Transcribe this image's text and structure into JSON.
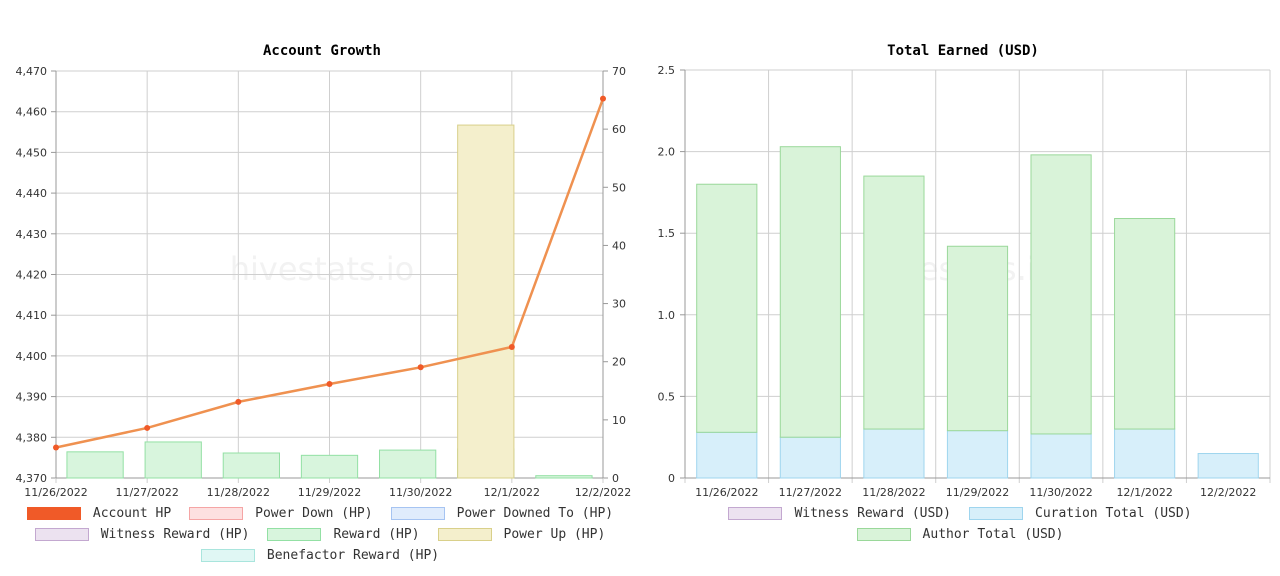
{
  "chart_data": [
    {
      "type": "bar",
      "title": "Account Growth",
      "categories": [
        "11/26/2022",
        "11/27/2022",
        "11/28/2022",
        "11/29/2022",
        "11/30/2022",
        "12/1/2022",
        "12/2/2022"
      ],
      "y_left": {
        "min": 4370,
        "max": 4470,
        "ticks": [
          "4,370",
          "4,380",
          "4,390",
          "4,400",
          "4,410",
          "4,420",
          "4,430",
          "4,440",
          "4,450",
          "4,460",
          "4,470"
        ]
      },
      "y_right": {
        "min": 0,
        "max": 70,
        "ticks": [
          "0",
          "10",
          "20",
          "30",
          "40",
          "50",
          "60",
          "70"
        ]
      },
      "grid": true,
      "watermark": "hivestats.io",
      "line_series": {
        "name": "Account HP",
        "color": "#f05a28",
        "line_color": "#ef9150",
        "values": [
          4377.5,
          4382.3,
          4388.7,
          4393.1,
          4397.2,
          4402.2,
          4463.2
        ]
      },
      "bar_series": [
        {
          "name": "Reward (HP)",
          "fill": "#d8f5dd",
          "stroke": "#93e0a4",
          "values": [
            4.5,
            6.2,
            4.3,
            3.9,
            4.8,
            5.0,
            0.4
          ]
        },
        {
          "name": "Power Up (HP)",
          "fill": "#f4efcc",
          "stroke": "#d9d08a",
          "values": [
            0,
            0,
            0,
            0,
            0,
            60.7,
            0
          ]
        }
      ],
      "legend": [
        [
          {
            "label": "Account HP",
            "fill": "#f05a28",
            "stroke": "#f05a28"
          },
          {
            "label": "Power Down (HP)",
            "fill": "#fde0e0",
            "stroke": "#f5a5a5"
          },
          {
            "label": "Power Downed To (HP)",
            "fill": "#e0ecfc",
            "stroke": "#a6c4f2"
          }
        ],
        [
          {
            "label": "Witness Reward (HP)",
            "fill": "#ece2f0",
            "stroke": "#c3a8d0"
          },
          {
            "label": "Reward (HP)",
            "fill": "#d8f5dd",
            "stroke": "#93e0a4"
          },
          {
            "label": "Power Up (HP)",
            "fill": "#f4efcc",
            "stroke": "#d9d08a"
          }
        ],
        [
          {
            "label": "Benefactor Reward (HP)",
            "fill": "#e0f7f4",
            "stroke": "#a9e5dd"
          }
        ]
      ]
    },
    {
      "type": "bar",
      "stacked": true,
      "title": "Total Earned (USD)",
      "categories": [
        "11/26/2022",
        "11/27/2022",
        "11/28/2022",
        "11/29/2022",
        "11/30/2022",
        "12/1/2022",
        "12/2/2022"
      ],
      "y": {
        "min": 0,
        "max": 2.5,
        "ticks": [
          "0",
          "0.5",
          "1.0",
          "1.5",
          "2.0",
          "2.5"
        ]
      },
      "grid": true,
      "watermark": "hivestats.io",
      "series": [
        {
          "name": "Curation Total (USD)",
          "fill": "#d7effa",
          "stroke": "#9fd5ee",
          "values": [
            0.28,
            0.25,
            0.3,
            0.29,
            0.27,
            0.3,
            0.15
          ]
        },
        {
          "name": "Author Total (USD)",
          "fill": "#d9f3d9",
          "stroke": "#9ad89a",
          "values": [
            1.52,
            1.78,
            1.55,
            1.13,
            1.71,
            1.29,
            0.0
          ]
        }
      ],
      "legend": [
        [
          {
            "label": "Witness Reward (USD)",
            "fill": "#ece2f0",
            "stroke": "#c3a8d0"
          },
          {
            "label": "Curation Total (USD)",
            "fill": "#d7effa",
            "stroke": "#9fd5ee"
          }
        ],
        [
          {
            "label": "Author Total (USD)",
            "fill": "#d9f3d9",
            "stroke": "#9ad89a"
          }
        ]
      ]
    }
  ]
}
